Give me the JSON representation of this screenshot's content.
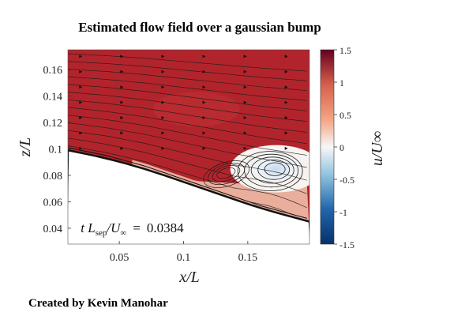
{
  "title": "Estimated flow field over a gaussian bump",
  "credit": "Created by Kevin Manohar",
  "chart_data": {
    "type": "heatmap",
    "title": "Estimated flow field over a gaussian bump",
    "xlabel": "x/L",
    "ylabel": "z/L",
    "xlim": [
      0.01,
      0.198
    ],
    "ylim": [
      0.028,
      0.175
    ],
    "x_ticks": [
      0.05,
      0.1,
      0.15
    ],
    "y_ticks": [
      0.04,
      0.06,
      0.08,
      0.1,
      0.12,
      0.14,
      0.16
    ],
    "x_tick_labels": [
      "0.05",
      "0.1",
      "0.15"
    ],
    "y_tick_labels": [
      "0.04",
      "0.06",
      "0.08",
      "0.1",
      "0.12",
      "0.14",
      "0.16"
    ],
    "colorbar": {
      "label": "u/U∞",
      "min": -1.5,
      "max": 1.5,
      "ticks": [
        -1.5,
        -1,
        -0.5,
        0,
        0.5,
        1,
        1.5
      ],
      "tick_labels": [
        "-1.5",
        "-1",
        "-0.5",
        "0",
        "0.5",
        "1",
        "1.5"
      ],
      "colormap": [
        "#08306b",
        "#2166ac",
        "#92c5de",
        "#f7f7f7",
        "#f4a582",
        "#d6604d",
        "#67001f"
      ]
    },
    "wall_profile": {
      "x": [
        0.01,
        0.04,
        0.07,
        0.1,
        0.13,
        0.16,
        0.198
      ],
      "z": [
        0.099,
        0.093,
        0.085,
        0.075,
        0.065,
        0.055,
        0.045
      ]
    },
    "separation_bubble": {
      "center_x": 0.172,
      "center_z": 0.085,
      "u_min": -0.6
    },
    "freestream_u": 1.25,
    "annotation": {
      "lhs": "t L",
      "sub": "sep",
      "mid": "/U",
      "inf": "∞",
      "eq": "=",
      "value": "0.0384",
      "x": 0.02,
      "z": 0.04
    }
  }
}
